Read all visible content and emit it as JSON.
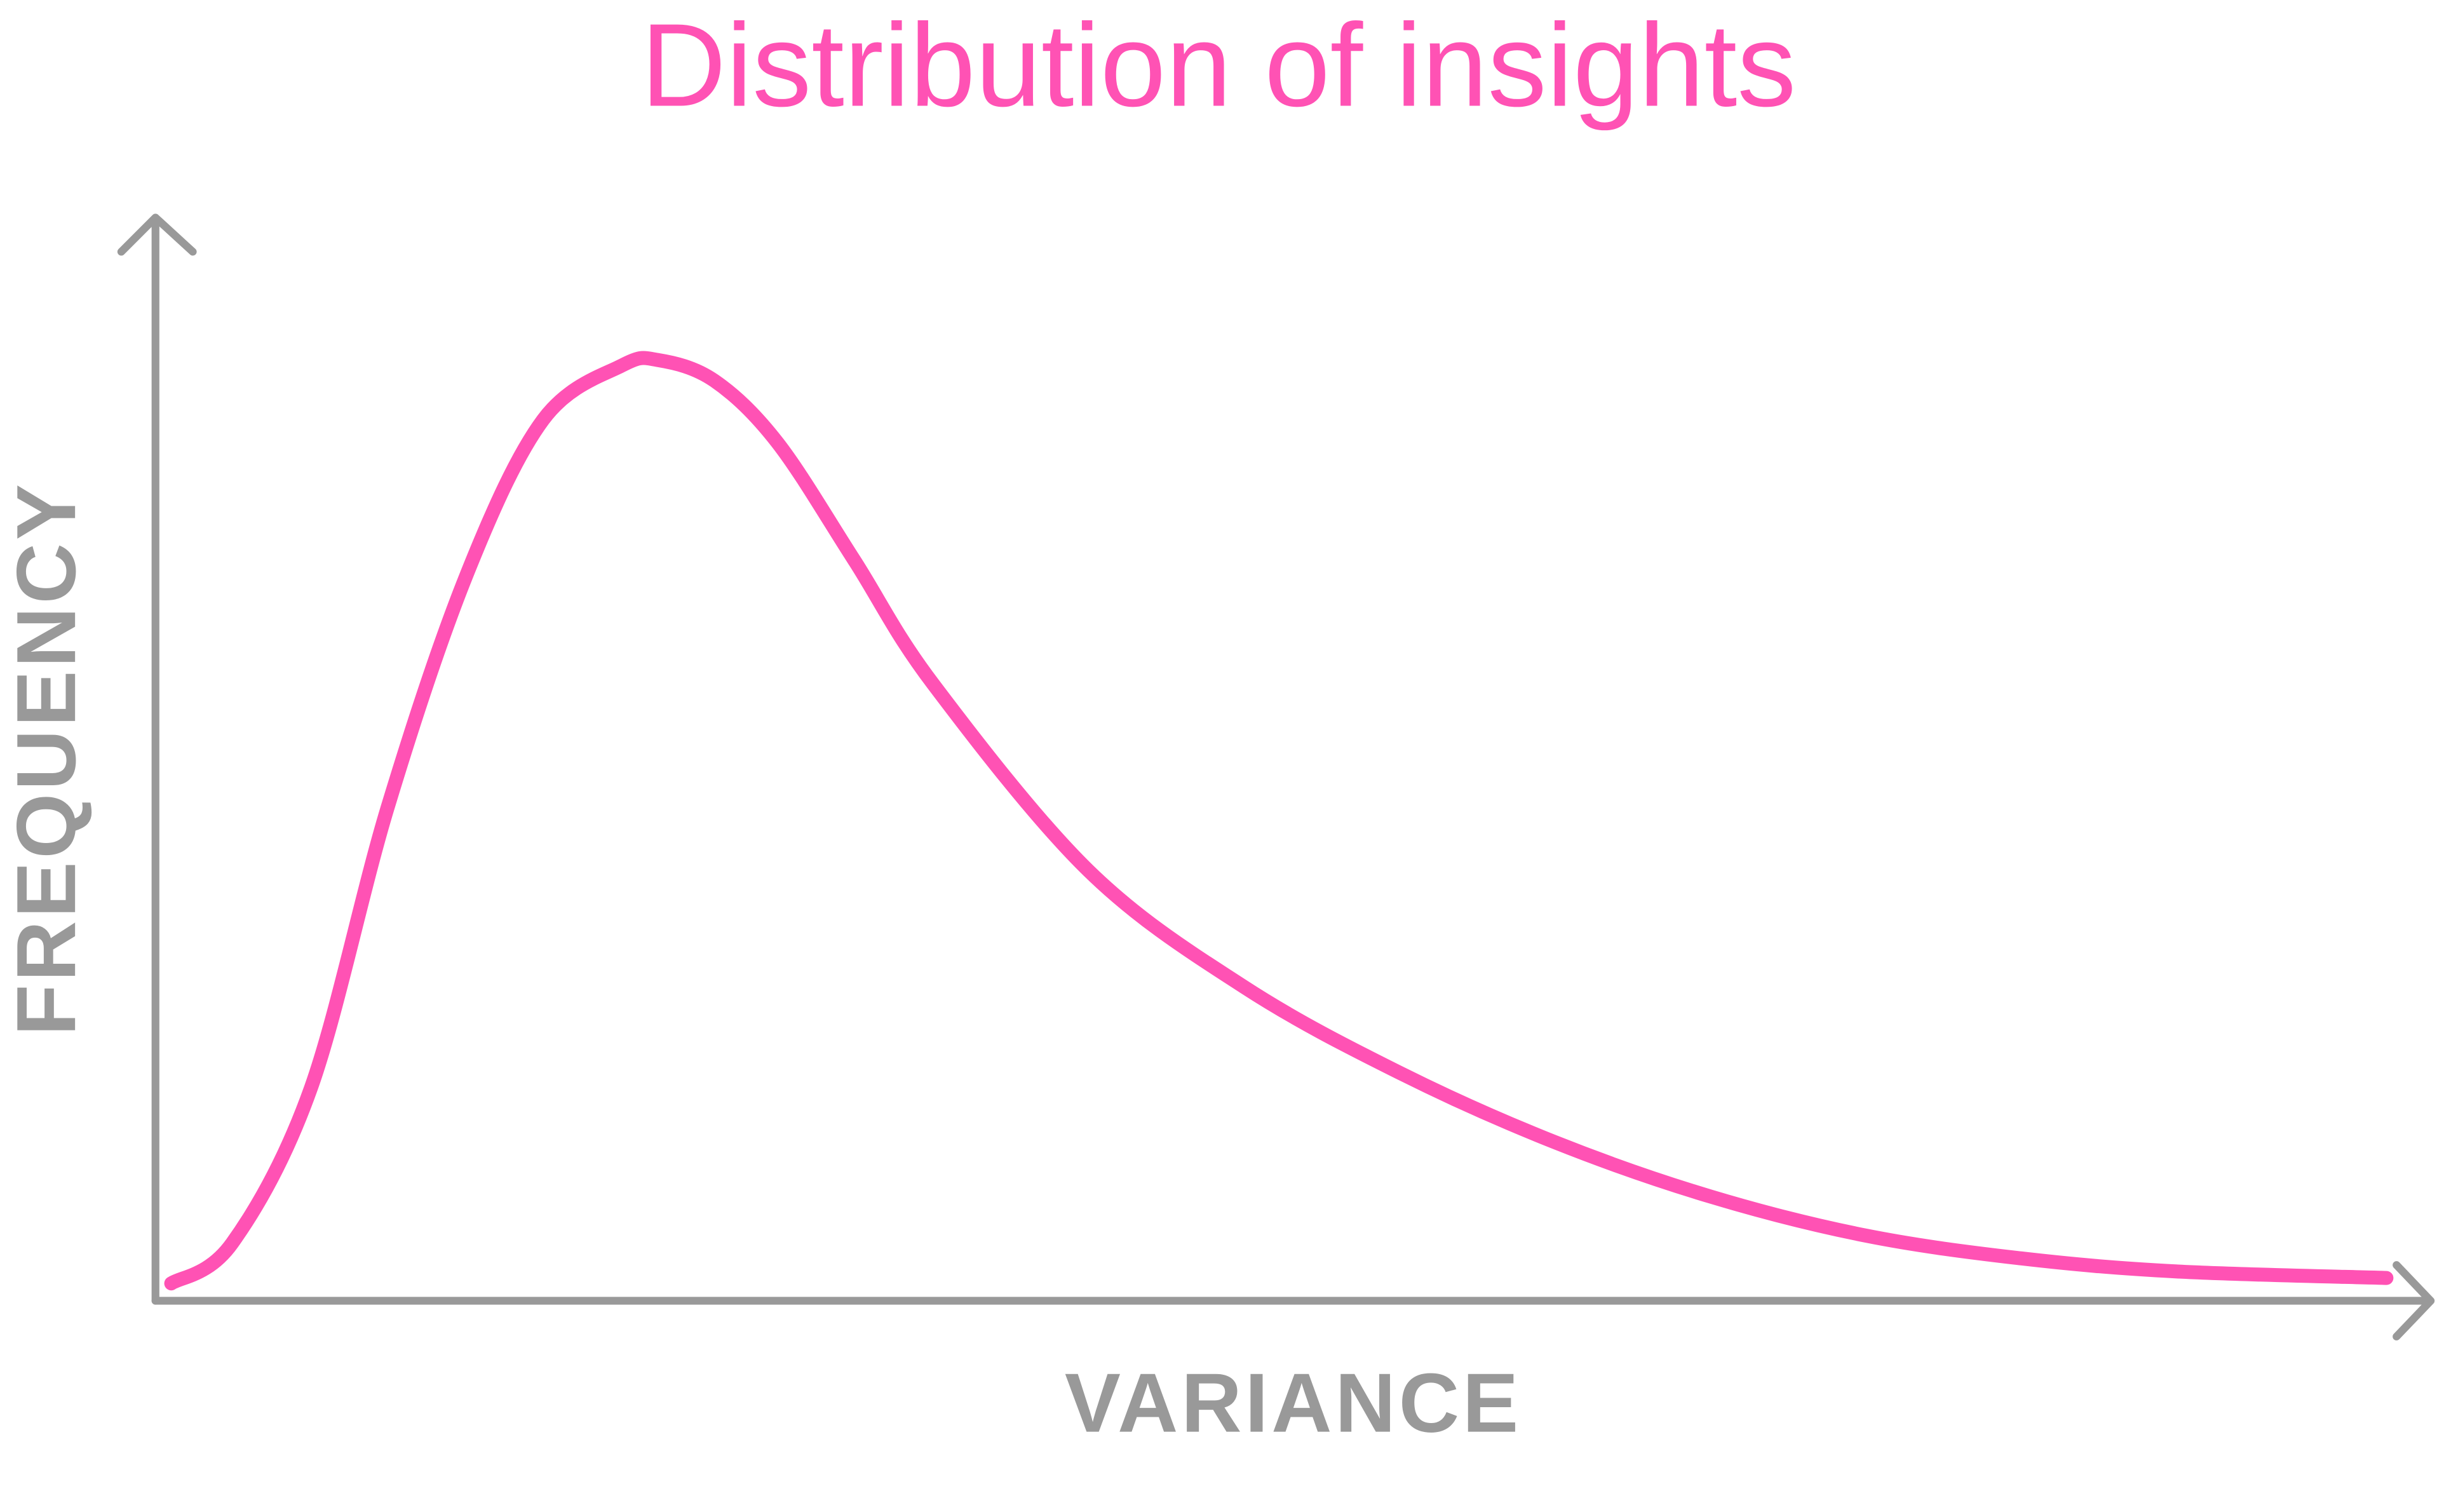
{
  "chart_data": {
    "type": "line",
    "title": "Distribution of insights",
    "x_label": "VARIANCE",
    "y_label": "FREQUENCY",
    "xlim": [
      0,
      100
    ],
    "ylim": [
      0,
      100
    ],
    "x": [
      0.7,
      3.4,
      6.9,
      10.3,
      13.8,
      17.2,
      20.7,
      22.3,
      24.8,
      27.6,
      31.0,
      34.5,
      41.4,
      48.3,
      55.2,
      62.1,
      69.0,
      75.9,
      82.8,
      89.7,
      99.0
    ],
    "series": [
      {
        "color": "#ff52b4",
        "values": [
          1.6,
          5.3,
          19.6,
          45.4,
          66.8,
          81.1,
          86.1,
          86.6,
          84.7,
          79.0,
          68.2,
          56.8,
          39.6,
          28.9,
          21.0,
          14.6,
          9.6,
          6.0,
          3.9,
          2.7,
          2.1
        ]
      }
    ]
  }
}
